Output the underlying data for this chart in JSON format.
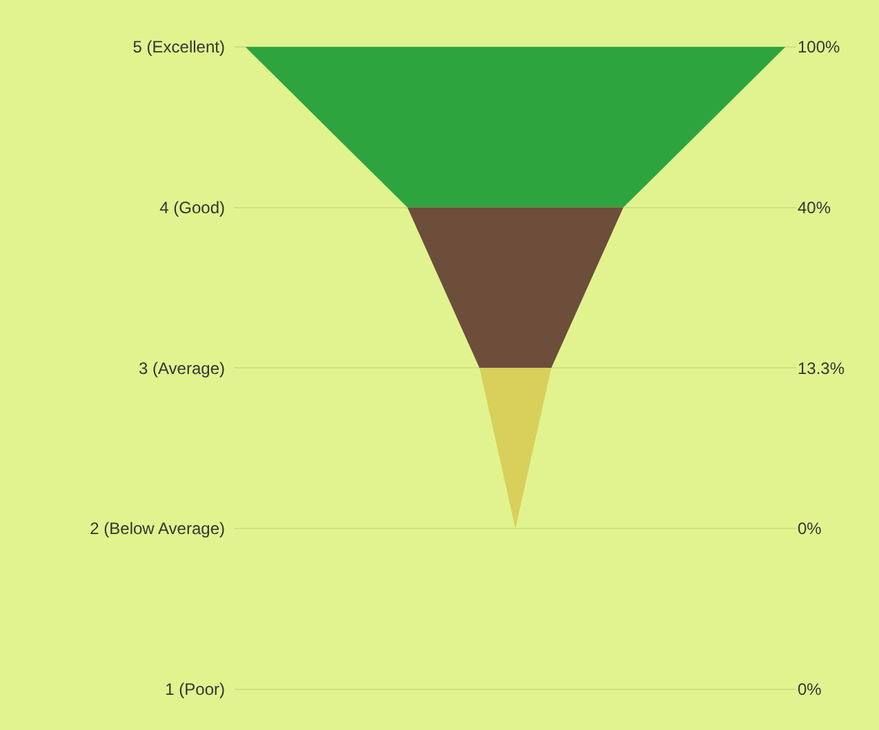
{
  "chart_data": {
    "type": "other",
    "categories": [
      "5 (Excellent)",
      "4 (Good)",
      "3 (Average)",
      "2 (Below Average)",
      "1 (Poor)"
    ],
    "values": [
      100,
      40,
      13.3,
      0,
      0
    ],
    "value_labels": [
      "100%",
      "40%",
      "13.3%",
      "0%",
      "0%"
    ],
    "colors": [
      "#2ea43f",
      "#6c4e3b",
      "#d8d05a",
      "#d8d05a",
      "#d8d05a"
    ]
  }
}
